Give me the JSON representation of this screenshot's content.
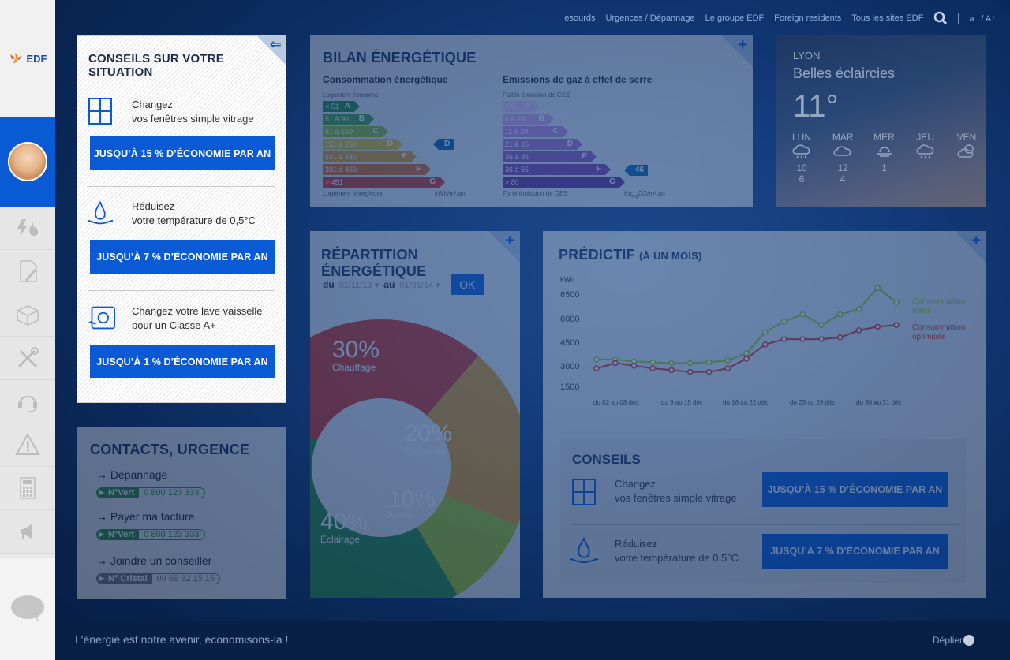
{
  "brand": {
    "logo_text": "EDF"
  },
  "topnav": {
    "links": [
      "esourds",
      "Urgences / Dépannage",
      "Le groupe EDF",
      "Foreign residents",
      "Tous les sites EDF"
    ],
    "font_size_label": "a⁻ / A⁺"
  },
  "conseils_popup": {
    "title": "CONSEILS SUR VOTRE SITUATION",
    "tips": [
      {
        "line1": "Changez",
        "line2": "vos fenêtres simple vitrage",
        "button": "JUSQU’À 15 % D’ÉCONOMIE PAR AN"
      },
      {
        "line1": "Réduisez",
        "line2": "votre température de 0,5°C",
        "button": "JUSQU’À 7 % D’ÉCONOMIE PAR AN"
      },
      {
        "line1": "Changez votre lave vaisselle",
        "line2": "pour un Classe A+",
        "button": "JUSQU’À 1 % D’ÉCONOMIE PAR AN"
      }
    ]
  },
  "bilan": {
    "title": "BILAN ÉNERGÉTIQUE",
    "conso": {
      "title": "Consommation énergétique",
      "top_label": "Logement économe",
      "bottom_label": "Logement énergivore",
      "unit": "kWh",
      "unit_suffix": "/m².an",
      "rows": [
        {
          "range": "< 51",
          "letter": "A",
          "color": "#2b8a3e"
        },
        {
          "range": "51 à 90",
          "letter": "B",
          "color": "#4aa23a"
        },
        {
          "range": "91 à 150",
          "letter": "C",
          "color": "#8fbf2a"
        },
        {
          "range": "151 à 230",
          "letter": "D",
          "color": "#e6c21a"
        },
        {
          "range": "231 à 330",
          "letter": "E",
          "color": "#e89a1a"
        },
        {
          "range": "331 à 450",
          "letter": "F",
          "color": "#e06818"
        },
        {
          "range": "> 451",
          "letter": "G",
          "color": "#d8321c"
        }
      ],
      "marker": "D"
    },
    "ges": {
      "title": "Emissions de gaz à effet de serre",
      "top_label": "Faible émission de GES",
      "bottom_label": "Forte émission de GES",
      "unit": "Kg",
      "unit_mid": "éq",
      "unit_co2": "CO",
      "unit_suffix": "/m².an",
      "rows": [
        {
          "range": "< 5",
          "letter": "A",
          "color": "#e9c6ee"
        },
        {
          "range": "6 à 10",
          "letter": "B",
          "color": "#d7a6e0"
        },
        {
          "range": "11 à 20",
          "letter": "C",
          "color": "#c58ad4"
        },
        {
          "range": "21 à 35",
          "letter": "D",
          "color": "#b270c6"
        },
        {
          "range": "36 à 35",
          "letter": "E",
          "color": "#9a55b3"
        },
        {
          "range": "36 à 55",
          "letter": "F",
          "color": "#833ea2"
        },
        {
          "range": "> 80",
          "letter": "G",
          "color": "#6a2a8a"
        }
      ],
      "marker": "46"
    }
  },
  "weather": {
    "city": "LYON",
    "condition": "Belles éclaircies",
    "temperature": "11°",
    "days": [
      {
        "name": "LUN",
        "icon": "rain-cloud-icon",
        "max": "10",
        "min": "6"
      },
      {
        "name": "MAR",
        "icon": "cloud-icon",
        "max": "12",
        "min": "4"
      },
      {
        "name": "MER",
        "icon": "sun-haze-icon",
        "max": "1",
        "min": ""
      },
      {
        "name": "JEU",
        "icon": "rain-cloud-icon",
        "max": "",
        "min": ""
      },
      {
        "name": "VEN",
        "icon": "sun-cloud-icon",
        "max": "",
        "min": ""
      }
    ]
  },
  "repartition": {
    "title": "RÉPARTITION ÉNERGÉTIQUE",
    "du_label": "du",
    "date_from": "01/11/13",
    "au_label": "au",
    "date_to": "01/01/14",
    "ok_label": "OK"
  },
  "predictif": {
    "title": "PRÉDICTIF",
    "subtitle": "(À UN MOIS)",
    "legend_reel": "Consommation réelle",
    "legend_opt": "Consommation optimisée",
    "legend_reel_color": "#a8c81a",
    "legend_opt_color": "#d8321c"
  },
  "conseils_box": {
    "title": "CONSEILS",
    "rows": [
      {
        "line1": "Changez",
        "line2": "vos fenêtres simple vitrage",
        "button": "JUSQU’À 15 % D’ÉCONOMIE PAR AN"
      },
      {
        "line1": "Réduisez",
        "line2": "votre température de 0,5°C",
        "button": "JUSQU’À 7 % D’ÉCONOMIE PAR AN"
      }
    ]
  },
  "contacts": {
    "title": "CONTACTS, URGENCE",
    "items": [
      {
        "label": "→ Dépannage",
        "key": "N°Vert",
        "number": "0 800 123 333",
        "style": "green"
      },
      {
        "label": "→ Payer ma facture",
        "key": "N°Vert",
        "number": "0 800 123 333",
        "style": "green"
      },
      {
        "label": "→ Joindre un conseiller",
        "key": "N° Cristal",
        "number": "09 69 32 15 15",
        "style": "gray"
      }
    ]
  },
  "footer": {
    "slogan": "L'énergie est notre avenir, économisons-la !",
    "deplier": "Déplier"
  },
  "chart_data": [
    {
      "type": "pie",
      "title": "RÉPARTITION ÉNERGÉTIQUE",
      "slices": [
        {
          "name": "Chauffage",
          "value": 30,
          "label": "30%",
          "color": "#d8321c"
        },
        {
          "name": "Electricité",
          "value": 20,
          "label": "20%",
          "color": "#e89a1a"
        },
        {
          "name": "Autres",
          "value": 10,
          "label": "10%",
          "color": "#a8c81a"
        },
        {
          "name": "Eclairage",
          "value": 40,
          "label": "40%",
          "color": "#2b8a3e"
        }
      ]
    },
    {
      "type": "line",
      "title": "PRÉDICTIF (À UN MOIS)",
      "ylabel": "kWh",
      "y_ticks": [
        "6500",
        "6000",
        "4500",
        "3000",
        "1500"
      ],
      "x_ticks": [
        "du 02 au 08 déc",
        "du 9 au 15 déc",
        "du 16 au 22 déc",
        "du 23 au 29 déc",
        "du 30 au 31 déc"
      ],
      "series": [
        {
          "name": "Consommation réelle",
          "color": "#a8c81a",
          "values": [
            3150,
            3150,
            3050,
            3000,
            2950,
            2950,
            3000,
            3100,
            3500,
            4700,
            5300,
            5700,
            5100,
            5700,
            6000,
            7200,
            6400
          ]
        },
        {
          "name": "Consommation optimisée",
          "color": "#d8321c",
          "values": [
            2650,
            2950,
            2800,
            2650,
            2550,
            2450,
            2450,
            2650,
            3200,
            4000,
            4300,
            4300,
            4300,
            4400,
            4800,
            5000,
            5100
          ]
        }
      ]
    }
  ]
}
